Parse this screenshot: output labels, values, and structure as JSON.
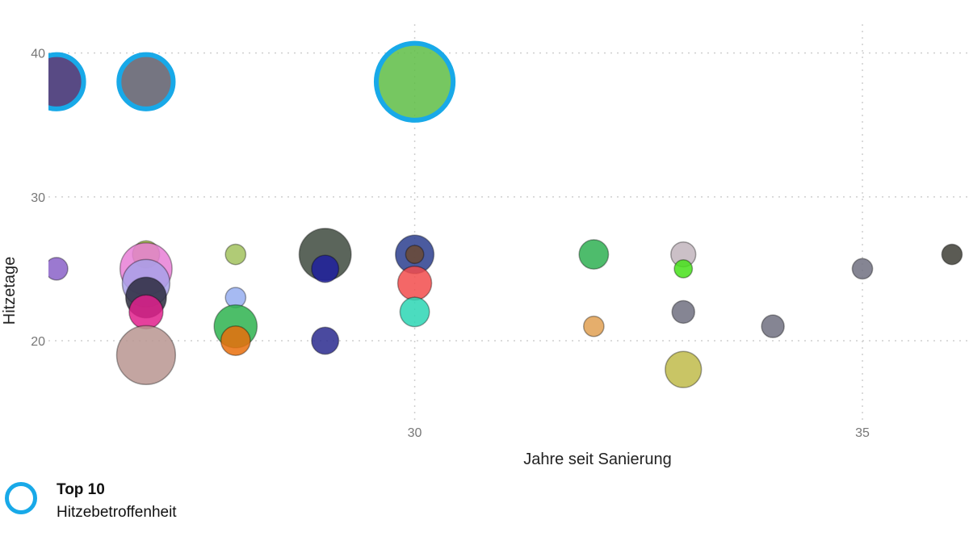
{
  "chart_data": {
    "type": "scatter",
    "xlabel": "Jahre seit Sanierung",
    "ylabel": "Hitzetage",
    "xlim": [
      26,
      36.1
    ],
    "ylim": [
      14.5,
      42
    ],
    "xticks": [
      30,
      35
    ],
    "yticks": [
      20,
      30,
      40
    ],
    "grid": true,
    "highlight_color": "#18a9e8",
    "points": [
      {
        "x": 26.0,
        "y": 38,
        "size": 2.4,
        "color": "#3b2a6e",
        "highlight": true
      },
      {
        "x": 27.0,
        "y": 38,
        "size": 2.4,
        "color": "#5d5d6b",
        "highlight": true
      },
      {
        "x": 30.0,
        "y": 38,
        "size": 3.4,
        "color": "#5ebd45",
        "highlight": true
      },
      {
        "x": 26.0,
        "y": 25,
        "size": 1.0,
        "color": "#8a62c8"
      },
      {
        "x": 27.0,
        "y": 26,
        "size": 1.2,
        "color": "#9fb83e"
      },
      {
        "x": 27.0,
        "y": 25,
        "size": 2.3,
        "color": "#e87fd6"
      },
      {
        "x": 27.0,
        "y": 24,
        "size": 2.1,
        "color": "#a8a0e8"
      },
      {
        "x": 27.0,
        "y": 23,
        "size": 1.8,
        "color": "#2c2c3e"
      },
      {
        "x": 27.0,
        "y": 22,
        "size": 1.5,
        "color": "#e0208c"
      },
      {
        "x": 27.0,
        "y": 19,
        "size": 2.6,
        "color": "#b89590"
      },
      {
        "x": 28.0,
        "y": 26,
        "size": 0.9,
        "color": "#a2c25e"
      },
      {
        "x": 28.0,
        "y": 23,
        "size": 0.9,
        "color": "#97aef0"
      },
      {
        "x": 28.0,
        "y": 21,
        "size": 1.9,
        "color": "#2eb34f"
      },
      {
        "x": 28.0,
        "y": 20,
        "size": 1.3,
        "color": "#e96f0c"
      },
      {
        "x": 29.0,
        "y": 26,
        "size": 2.3,
        "color": "#3e4a3e"
      },
      {
        "x": 29.0,
        "y": 25,
        "size": 1.2,
        "color": "#1e1e9e"
      },
      {
        "x": 29.0,
        "y": 20,
        "size": 1.2,
        "color": "#2a2a8e"
      },
      {
        "x": 30.0,
        "y": 26,
        "size": 1.7,
        "color": "#2b3e8e"
      },
      {
        "x": 30.0,
        "y": 26,
        "size": 0.8,
        "color": "#6b4a32"
      },
      {
        "x": 30.0,
        "y": 24,
        "size": 1.5,
        "color": "#f24c4c"
      },
      {
        "x": 30.0,
        "y": 22,
        "size": 1.3,
        "color": "#2cd6b4"
      },
      {
        "x": 32.0,
        "y": 26,
        "size": 1.3,
        "color": "#2fb052"
      },
      {
        "x": 32.0,
        "y": 21,
        "size": 0.9,
        "color": "#e0a052"
      },
      {
        "x": 33.0,
        "y": 26,
        "size": 1.1,
        "color": "#c2b5bd"
      },
      {
        "x": 33.0,
        "y": 25,
        "size": 0.8,
        "color": "#46e11a"
      },
      {
        "x": 33.0,
        "y": 22,
        "size": 1.0,
        "color": "#707080"
      },
      {
        "x": 33.0,
        "y": 18,
        "size": 1.6,
        "color": "#bfbb4a"
      },
      {
        "x": 34.0,
        "y": 21,
        "size": 1.0,
        "color": "#707080"
      },
      {
        "x": 35.0,
        "y": 25,
        "size": 0.9,
        "color": "#707080"
      },
      {
        "x": 36.0,
        "y": 26,
        "size": 0.9,
        "color": "#3e3e36"
      }
    ]
  },
  "legend": {
    "title": "Top 10",
    "subtitle": "Hitzebetroffenheit"
  }
}
